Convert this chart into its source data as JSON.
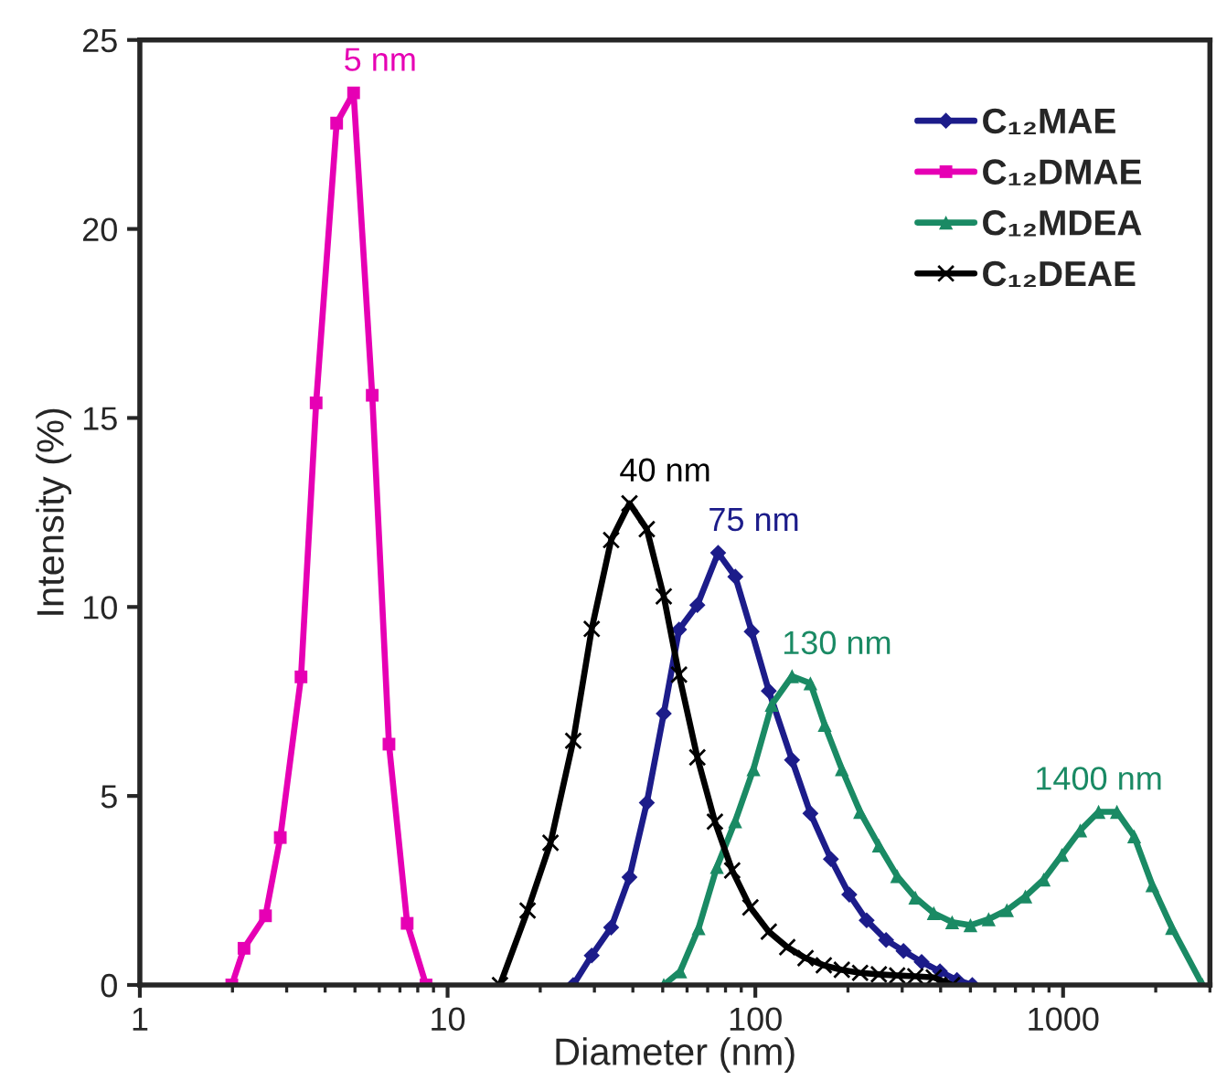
{
  "chart_data": {
    "type": "line",
    "xlabel": "Diameter (nm)",
    "ylabel": "Intensity (%)",
    "log": "x",
    "xlim": [
      1,
      3000
    ],
    "xticks": [
      1,
      10,
      100,
      1000
    ],
    "ylim": [
      0,
      25
    ],
    "yticks": [
      0,
      5,
      10,
      15,
      20,
      25
    ],
    "legend": "top right",
    "line_style": "solid",
    "series": [
      {
        "name": "C₁₂MAE",
        "color": "#1c1c8a",
        "marker": "diamond",
        "x": [
          25.6,
          29.4,
          34,
          39,
          44.4,
          50.4,
          56.5,
          64.8,
          75.7,
          86.1,
          97.3,
          110.6,
          131.6,
          151,
          176,
          202,
          230,
          266,
          303,
          347,
          398,
          452,
          507
        ],
        "values": [
          0,
          0.78,
          1.52,
          2.85,
          4.82,
          7.18,
          9.4,
          10.05,
          11.43,
          10.8,
          9.35,
          7.78,
          5.95,
          4.54,
          3.33,
          2.39,
          1.71,
          1.19,
          0.9,
          0.61,
          0.36,
          0.13,
          0
        ]
      },
      {
        "name": "C₁₂DMAE",
        "color": "#e600b4",
        "marker": "square",
        "x": [
          1.99,
          2.18,
          2.56,
          2.86,
          3.34,
          3.74,
          4.36,
          4.95,
          5.69,
          6.45,
          7.39,
          8.51
        ],
        "values": [
          0,
          0.97,
          1.83,
          3.9,
          8.15,
          15.4,
          22.8,
          23.6,
          15.6,
          6.37,
          1.63,
          0
        ]
      },
      {
        "name": "C₁₂MDEA",
        "color": "#1a8a64",
        "marker": "triangle",
        "x": [
          50.4,
          57,
          65.4,
          75,
          86,
          98.6,
          113,
          131.6,
          151,
          168,
          191,
          219,
          252,
          289,
          331,
          380,
          436,
          500,
          573,
          657,
          754,
          865,
          991,
          1137,
          1304,
          1496,
          1702,
          1950,
          2259,
          2838
        ],
        "values": [
          0,
          0.36,
          1.5,
          3.12,
          4.33,
          5.71,
          7.41,
          8.17,
          7.98,
          6.88,
          5.71,
          4.58,
          3.69,
          2.88,
          2.31,
          1.9,
          1.66,
          1.58,
          1.74,
          1.98,
          2.34,
          2.79,
          3.44,
          4.09,
          4.58,
          4.58,
          3.93,
          2.64,
          1.51,
          0
        ]
      },
      {
        "name": "C₁₂DEAE",
        "color": "#000000",
        "marker": "cross",
        "x": [
          14.8,
          18.2,
          21.6,
          25.6,
          29.4,
          34,
          39,
          44.4,
          50.4,
          56.5,
          64.8,
          73.9,
          84.1,
          96.4,
          110.6,
          127,
          145.6,
          166.9,
          191,
          219,
          252,
          289,
          331,
          380,
          436
        ],
        "values": [
          0,
          1.97,
          3.76,
          6.46,
          9.42,
          11.77,
          12.74,
          12.06,
          10.28,
          8.21,
          6.02,
          4.32,
          3.03,
          2.05,
          1.41,
          1.0,
          0.71,
          0.52,
          0.4,
          0.32,
          0.28,
          0.25,
          0.23,
          0.2,
          0
        ]
      }
    ],
    "annotations": [
      {
        "text": "5 nm",
        "x": 4.95,
        "y": 23.6
      },
      {
        "text": "40 nm",
        "x": 39,
        "y": 12.74
      },
      {
        "text": "75 nm",
        "x": 75.7,
        "y": 11.43
      },
      {
        "text": "130 nm",
        "x": 131.6,
        "y": 8.17
      },
      {
        "text": "1400 nm",
        "x": 1304,
        "y": 4.58
      }
    ]
  }
}
